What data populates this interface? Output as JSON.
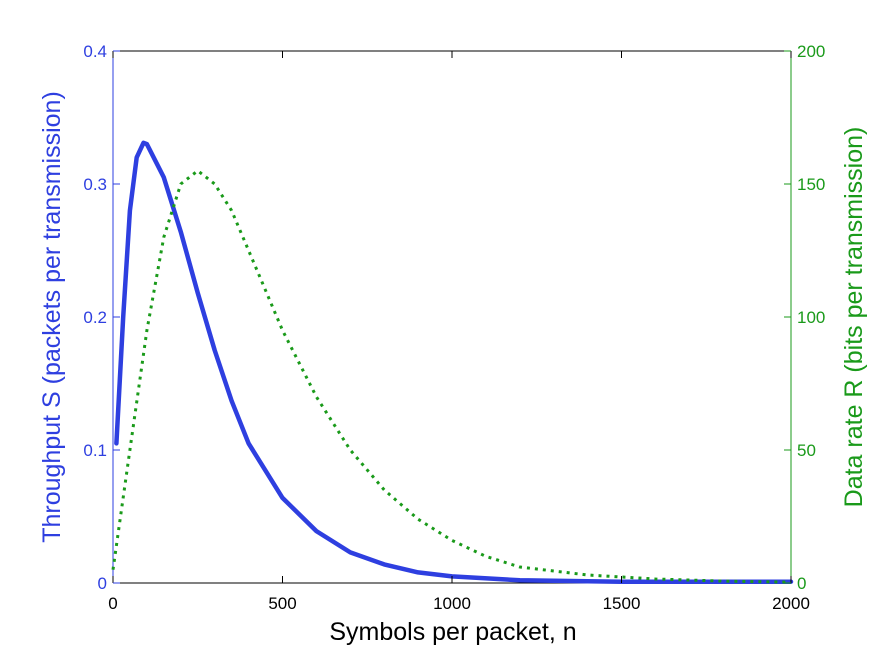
{
  "chart_data": {
    "type": "line",
    "xlabel": "Symbols per packet, n",
    "ylabel_left": "Throughput S (packets per transmission)",
    "ylabel_right": "Data rate R (bits per transmission)",
    "xlim": [
      0,
      2000
    ],
    "ylim_left": [
      0,
      0.4
    ],
    "ylim_right": [
      0,
      200
    ],
    "xticks": [
      "0",
      "500",
      "1000",
      "1500",
      "2000"
    ],
    "yticks_left": [
      "0",
      "0.1",
      "0.2",
      "0.3",
      "0.4"
    ],
    "yticks_right": [
      "0",
      "50",
      "100",
      "150",
      "200"
    ],
    "grid": false,
    "colors": {
      "left": "#2e3fe0",
      "right": "#1a9a1a"
    },
    "series": [
      {
        "axis": "left",
        "style": "solid",
        "x": [
          10,
          30,
          50,
          70,
          90,
          100,
          150,
          200,
          250,
          300,
          350,
          400,
          500,
          600,
          700,
          800,
          900,
          1000,
          1200,
          1500,
          2000
        ],
        "values": [
          0.105,
          0.2,
          0.28,
          0.32,
          0.331,
          0.33,
          0.305,
          0.264,
          0.218,
          0.175,
          0.137,
          0.105,
          0.064,
          0.039,
          0.023,
          0.014,
          0.008,
          0.005,
          0.002,
          0.001,
          0.001
        ]
      },
      {
        "axis": "right",
        "style": "dotted",
        "x": [
          0,
          50,
          100,
          150,
          200,
          250,
          300,
          350,
          400,
          500,
          600,
          700,
          800,
          900,
          1000,
          1100,
          1200,
          1400,
          1600,
          1800,
          2000
        ],
        "values": [
          5,
          50,
          95,
          130,
          150,
          155,
          150,
          140,
          125,
          95,
          70,
          50,
          35,
          24,
          16,
          10,
          6,
          3,
          1.5,
          0.7,
          0.3
        ]
      }
    ]
  }
}
